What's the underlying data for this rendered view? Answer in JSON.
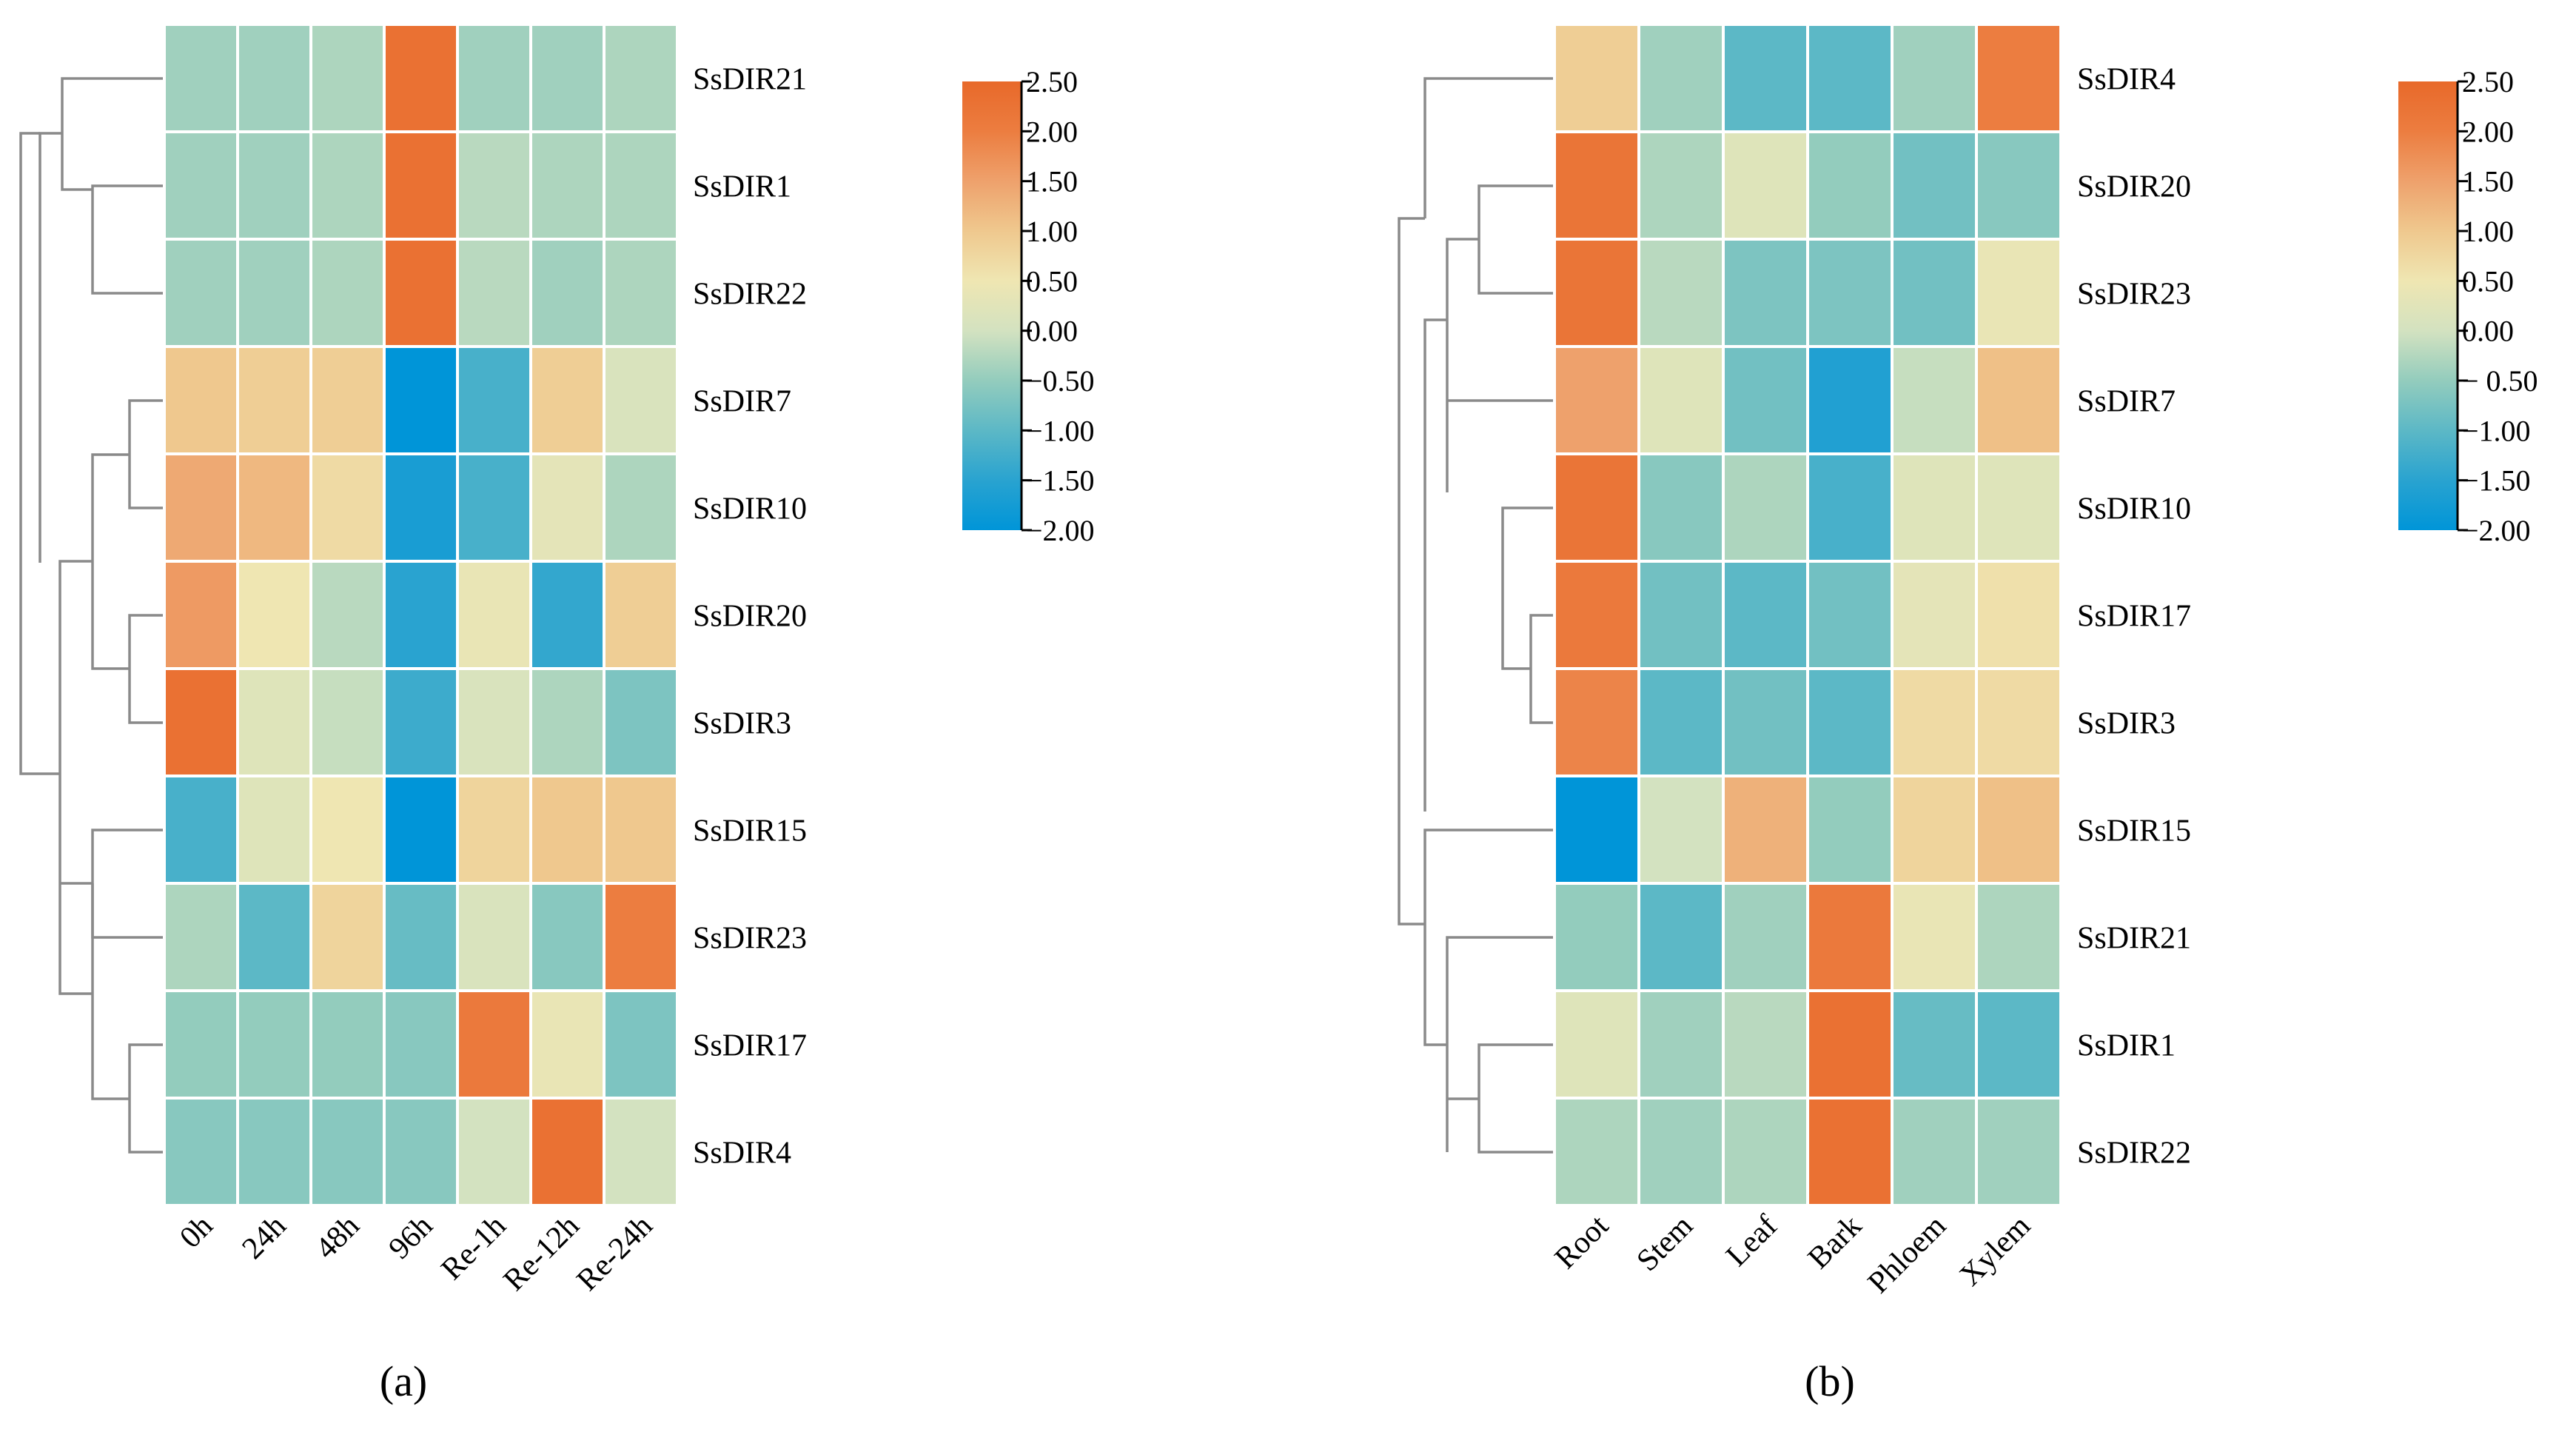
{
  "panels": [
    {
      "label": "(a)",
      "columns": [
        "0h",
        "24h",
        "48h",
        "96h",
        "Re-1h",
        "Re-12h",
        "Re-24h"
      ],
      "rows": [
        "SsDIR21",
        "SsDIR1",
        "SsDIR22",
        "SsDIR7",
        "SsDIR10",
        "SsDIR20",
        "SsDIR3",
        "SsDIR15",
        "SsDIR23",
        "SsDIR17",
        "SsDIR4"
      ],
      "colorbar_ticks": [
        "2.50",
        "2.00",
        "1.50",
        "1.00",
        "0.50",
        "0.00",
        "−0.50",
        "−1.00",
        "−1.50",
        "−2.00"
      ]
    },
    {
      "label": "(b)",
      "columns": [
        "Root",
        "Stem",
        "Leaf",
        "Bark",
        "Phloem",
        "Xylem"
      ],
      "rows": [
        "SsDIR4",
        "SsDIR20",
        "SsDIR23",
        "SsDIR7",
        "SsDIR10",
        "SsDIR17",
        "SsDIR3",
        "SsDIR15",
        "SsDIR21",
        "SsDIR1",
        "SsDIR22"
      ],
      "colorbar_ticks": [
        "2.50",
        "2.00",
        "1.50",
        "1.00",
        "0.50",
        "0.00",
        "− 0.50",
        "−1.00",
        "−1.50",
        "−2.00"
      ]
    }
  ],
  "chart_data": [
    {
      "type": "heatmap",
      "x": [
        "0h",
        "24h",
        "48h",
        "96h",
        "Re-1h",
        "Re-12h",
        "Re-24h"
      ],
      "y": [
        "SsDIR21",
        "SsDIR1",
        "SsDIR22",
        "SsDIR7",
        "SsDIR10",
        "SsDIR20",
        "SsDIR3",
        "SsDIR15",
        "SsDIR23",
        "SsDIR17",
        "SsDIR4"
      ],
      "values": [
        [
          -0.4,
          -0.4,
          -0.3,
          2.3,
          -0.4,
          -0.4,
          -0.3
        ],
        [
          -0.4,
          -0.4,
          -0.3,
          2.3,
          -0.2,
          -0.3,
          -0.3
        ],
        [
          -0.4,
          -0.4,
          -0.3,
          2.3,
          -0.2,
          -0.4,
          -0.3
        ],
        [
          1.0,
          0.9,
          0.9,
          -2.0,
          -1.2,
          0.9,
          0.1
        ],
        [
          1.4,
          1.2,
          0.7,
          -1.7,
          -1.2,
          0.3,
          -0.3
        ],
        [
          1.6,
          0.5,
          -0.2,
          -1.5,
          0.4,
          -1.4,
          0.9
        ],
        [
          2.3,
          0.2,
          -0.1,
          -1.3,
          0.1,
          -0.3,
          -0.7
        ],
        [
          -1.2,
          0.2,
          0.5,
          -2.0,
          0.8,
          1.0,
          1.0
        ],
        [
          -0.3,
          -1.0,
          0.8,
          -0.9,
          0.1,
          -0.6,
          2.0
        ],
        [
          -0.5,
          -0.5,
          -0.5,
          -0.6,
          2.1,
          0.4,
          -0.7
        ],
        [
          -0.6,
          -0.6,
          -0.6,
          -0.6,
          0.0,
          2.3,
          0.0
        ]
      ],
      "colorbar": {
        "min": -2.0,
        "max": 2.5,
        "ticks": [
          2.5,
          2.0,
          1.5,
          1.0,
          0.5,
          0.0,
          -0.5,
          -1.0,
          -1.5,
          -2.0
        ]
      },
      "row_dendrogram": true,
      "title": "",
      "xlabel": "",
      "ylabel": ""
    },
    {
      "type": "heatmap",
      "x": [
        "Root",
        "Stem",
        "Leaf",
        "Bark",
        "Phloem",
        "Xylem"
      ],
      "y": [
        "SsDIR4",
        "SsDIR20",
        "SsDIR23",
        "SsDIR7",
        "SsDIR10",
        "SsDIR17",
        "SsDIR3",
        "SsDIR15",
        "SsDIR21",
        "SsDIR1",
        "SsDIR22"
      ],
      "values": [
        [
          0.9,
          -0.4,
          -1.0,
          -1.0,
          -0.4,
          2.0
        ],
        [
          2.2,
          -0.3,
          0.2,
          -0.5,
          -0.8,
          -0.6
        ],
        [
          2.2,
          -0.2,
          -0.7,
          -0.7,
          -0.8,
          0.4
        ],
        [
          1.5,
          0.2,
          -0.8,
          -1.6,
          -0.1,
          1.1
        ],
        [
          2.2,
          -0.6,
          -0.3,
          -1.2,
          0.2,
          0.2
        ],
        [
          2.1,
          -0.8,
          -1.0,
          -0.8,
          0.3,
          0.6
        ],
        [
          1.9,
          -1.0,
          -0.8,
          -1.0,
          0.7,
          0.7
        ],
        [
          -2.0,
          0.0,
          1.3,
          -0.5,
          0.8,
          1.1
        ],
        [
          -0.5,
          -1.0,
          -0.4,
          2.1,
          0.4,
          -0.3
        ],
        [
          0.2,
          -0.4,
          -0.2,
          2.3,
          -0.9,
          -1.0
        ],
        [
          -0.3,
          -0.4,
          -0.3,
          2.3,
          -0.4,
          -0.4
        ]
      ],
      "colorbar": {
        "min": -2.0,
        "max": 2.5,
        "ticks": [
          2.5,
          2.0,
          1.5,
          1.0,
          0.5,
          0.0,
          -0.5,
          -1.0,
          -1.5,
          -2.0
        ]
      },
      "row_dendrogram": true,
      "title": "",
      "xlabel": "",
      "ylabel": ""
    }
  ]
}
